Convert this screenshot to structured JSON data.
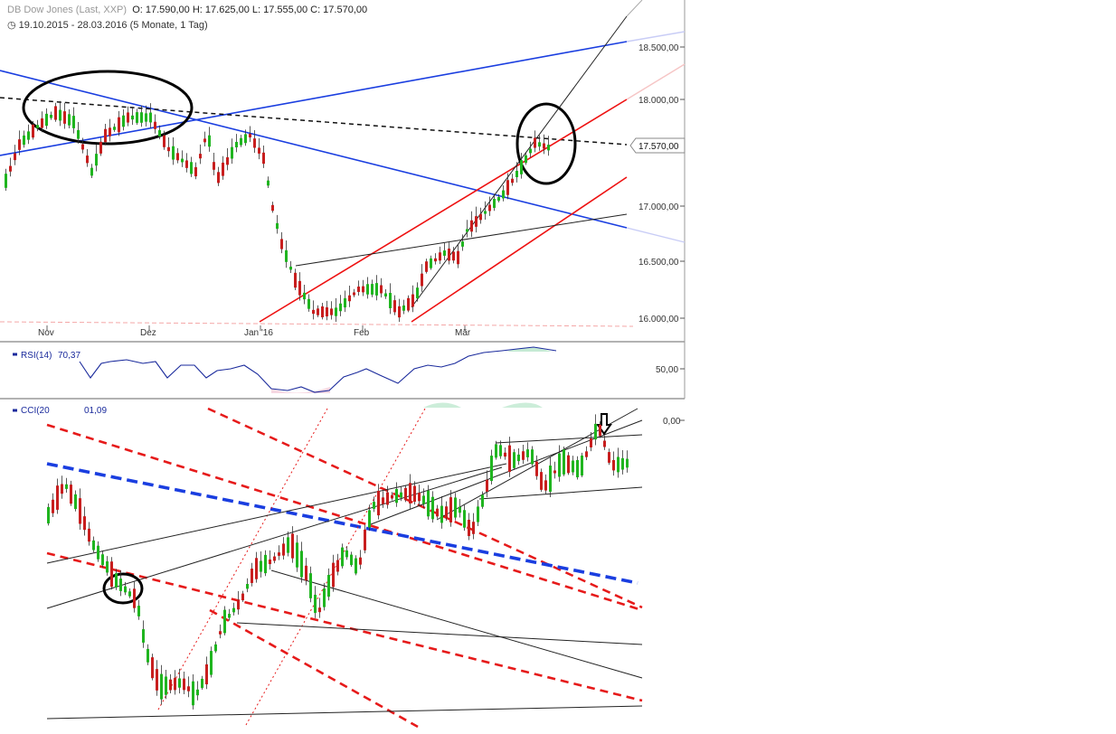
{
  "header": {
    "instrument": "DB Dow Jones (Last, XXP)",
    "ohlc": "O: 17.590,00  H: 17.625,00  L: 17.555,00  C: 17.570,00",
    "range": "19.10.2015 - 28.03.2016 (5 Monate, 1 Tag)"
  },
  "chart_data": {
    "type": "candlestick",
    "x_labels": [
      "Nov",
      "Dez",
      "Jan '16",
      "Feb",
      "Mär"
    ],
    "price_axis": {
      "ticks": [
        "18.500,00",
        "18.000,00",
        "17.000,00",
        "16.500,00",
        "16.000,00"
      ],
      "ylim": [
        15950,
        18700
      ],
      "last_price_label": "17.570,00",
      "last_price": 17570
    },
    "rsi": {
      "label": "RSI(14)",
      "value": "70,37",
      "tick": "50,00"
    },
    "cci": {
      "label": "CCI(20",
      "value": "01,09",
      "tick": "0,00"
    },
    "colors": {
      "up": "#1fb51f",
      "down": "#c81e1e",
      "trend_blue": "#1a3ee0",
      "trend_red": "#ee1111",
      "rsi_line": "#1a2a9c"
    }
  }
}
